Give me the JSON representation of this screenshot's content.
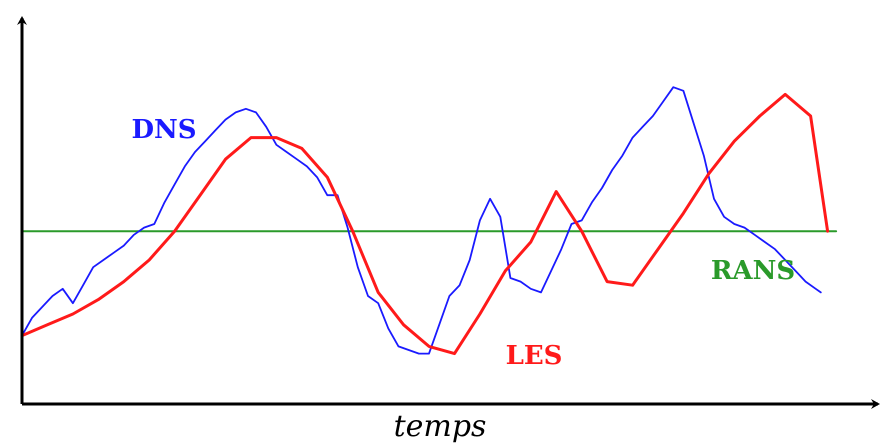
{
  "chart_data": {
    "type": "line",
    "title": "",
    "xlabel": "temps",
    "ylabel": "",
    "xlim": [
      0,
      100
    ],
    "ylim": [
      0,
      100
    ],
    "grid": false,
    "axis_ticks": false,
    "series": [
      {
        "name": "DNS",
        "color": "#1a1aff",
        "x": [
          0,
          1.2,
          2.4,
          3.6,
          4.8,
          6.0,
          7.2,
          8.4,
          9.6,
          10.8,
          12.0,
          13.2,
          14.4,
          15.6,
          16.8,
          18.0,
          19.2,
          20.4,
          21.6,
          22.8,
          24.0,
          25.2,
          26.4,
          27.6,
          28.8,
          30.0,
          31.2,
          32.4,
          33.6,
          34.8,
          36.0,
          37.2,
          38.4,
          39.6,
          40.8,
          42.0,
          43.2,
          44.4,
          45.6,
          46.8,
          48.0,
          49.2,
          50.4,
          51.6,
          52.8,
          54.0,
          55.2,
          56.4,
          57.6,
          58.8,
          60.0,
          61.2,
          62.4,
          63.6,
          64.8,
          66.0,
          67.2,
          68.4,
          69.6,
          70.8,
          72.0,
          73.2,
          74.4,
          75.6,
          76.8,
          78.0,
          79.2,
          80.4,
          81.6,
          82.8,
          84.0,
          85.2,
          86.4,
          87.6,
          88.8,
          90.0,
          91.2,
          92.4,
          93.6,
          94.2
        ],
        "y": [
          19,
          24,
          27,
          30,
          32,
          28,
          33,
          38,
          40,
          42,
          44,
          47,
          49,
          50,
          56,
          61,
          66,
          70,
          73,
          76,
          79,
          81,
          82,
          81,
          77,
          72,
          70,
          68,
          66,
          63,
          58,
          58,
          49,
          38,
          30,
          28,
          21,
          16,
          15,
          14,
          14,
          22,
          30,
          33,
          40,
          51,
          57,
          52,
          35,
          34,
          32,
          31,
          37,
          43,
          50,
          51,
          56,
          60,
          65,
          69,
          74,
          77,
          80,
          84,
          88,
          87,
          78,
          69,
          57,
          52,
          50,
          49,
          47,
          45,
          43,
          40,
          37,
          34,
          32,
          31
        ]
      },
      {
        "name": "LES",
        "color": "#ff1a1a",
        "x": [
          0,
          3,
          6,
          9,
          12,
          15,
          18,
          21,
          24,
          27,
          30,
          33,
          36,
          39,
          42,
          45,
          48,
          51,
          54,
          57,
          60,
          63,
          66,
          69,
          72,
          75,
          78,
          81,
          84,
          87,
          90,
          93,
          95
        ],
        "y": [
          19,
          22,
          25,
          29,
          34,
          40,
          48,
          58,
          68,
          74,
          74,
          71,
          63,
          48,
          31,
          22,
          16,
          14,
          25,
          37,
          45,
          59,
          48,
          34,
          33,
          43,
          53,
          64,
          73,
          80,
          86,
          80,
          48
        ]
      },
      {
        "name": "RANS",
        "color": "#2a9a2a",
        "x": [
          0,
          96
        ],
        "y": [
          48,
          48
        ]
      }
    ]
  }
}
